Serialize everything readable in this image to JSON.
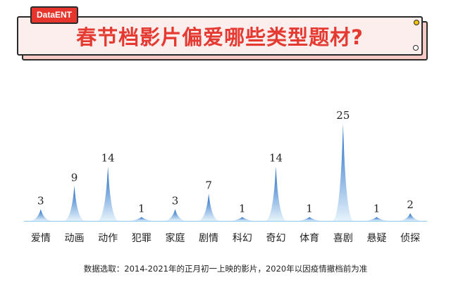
{
  "brand": {
    "tag": "DataENT"
  },
  "header": {
    "title": "春节档影片偏爱哪些类型题材?"
  },
  "chart_data": {
    "type": "area",
    "title": "春节档影片偏爱哪些类型题材?",
    "categories": [
      "爱情",
      "动画",
      "动作",
      "犯罪",
      "家庭",
      "剧情",
      "科幻",
      "奇幻",
      "体育",
      "喜剧",
      "悬疑",
      "侦探"
    ],
    "values": [
      3,
      9,
      14,
      1,
      3,
      7,
      1,
      14,
      1,
      25,
      1,
      2
    ],
    "ylim": [
      0,
      25
    ],
    "colors": {
      "peak": "#1a66c4",
      "fade": "#e6f3fb",
      "guide": "#8fc8ea"
    }
  },
  "footer": {
    "source": "数据选取：2014-2021年的正月初一上映的影片，2020年以因疫情撤档前为准"
  }
}
